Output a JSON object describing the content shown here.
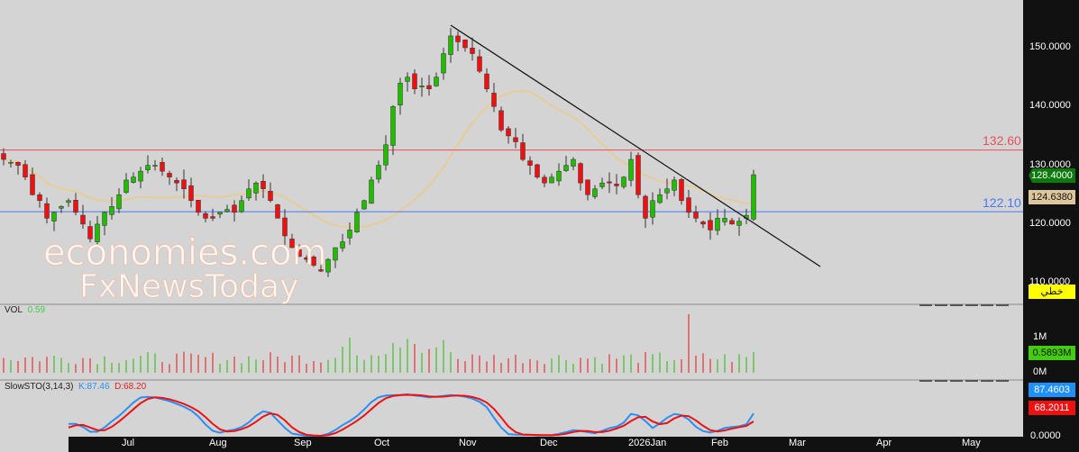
{
  "price_axis": {
    "ticks": [
      "150.0000",
      "140.0000",
      "130.0000",
      "120.0000",
      "110.0000"
    ],
    "tick_values": [
      150,
      140,
      130,
      120,
      110
    ],
    "last_price": "128.4000",
    "ma_value": "124.6380",
    "chart_type_label": "خطي"
  },
  "levels": {
    "resistance": "132.60",
    "resistance_value": 132.6,
    "support": "122.10",
    "support_value": 122.1,
    "resistance_color": "#e8505b",
    "support_color": "#4a78f0"
  },
  "trendline": {
    "from": [
      62,
      152.6
    ],
    "to": [
      113,
      111.3
    ]
  },
  "time_axis": [
    "Jul",
    "Aug",
    "Sep",
    "Oct",
    "Nov",
    "Dec",
    "2026Jan",
    "Feb",
    "Mar",
    "Apr",
    "May"
  ],
  "closes": [
    131,
    130.5,
    130,
    128,
    125,
    124,
    121,
    122,
    123,
    124,
    122,
    120,
    117.5,
    120,
    122,
    123,
    125,
    127.5,
    128,
    129,
    130,
    130,
    129,
    128,
    127,
    126,
    124,
    122,
    121,
    121,
    122,
    122.5,
    122,
    124,
    126,
    127,
    126,
    124,
    121,
    118,
    116,
    114.5,
    114,
    113,
    112,
    114,
    116,
    117,
    119,
    122,
    124,
    127.5,
    130,
    133.5,
    140,
    144,
    145,
    143,
    143.5,
    143,
    145,
    149,
    152,
    151,
    150,
    149,
    146,
    143,
    140,
    136,
    135,
    134,
    131,
    130,
    128,
    127,
    128,
    129,
    130,
    131,
    127,
    125,
    126,
    127,
    127,
    126.5,
    128,
    131,
    125,
    121,
    124,
    125,
    126,
    127.5,
    124,
    122,
    121,
    120,
    119,
    121,
    121,
    120,
    120.5,
    121.5,
    128.4
  ],
  "volume": {
    "label": "VOL",
    "value": "0.59",
    "ticks": [
      "1M",
      "0M"
    ],
    "last": "0.5893M"
  },
  "stoch": {
    "label": "SlowSTO(3,14,3)",
    "k_label": "K:87.46",
    "d_label": "D:68.20",
    "k_value": "87.4603",
    "d_value": "68.2011",
    "zero": "0.0000"
  },
  "watermark": {
    "line1": "economies.com",
    "line2": "FxNewsToday"
  }
}
